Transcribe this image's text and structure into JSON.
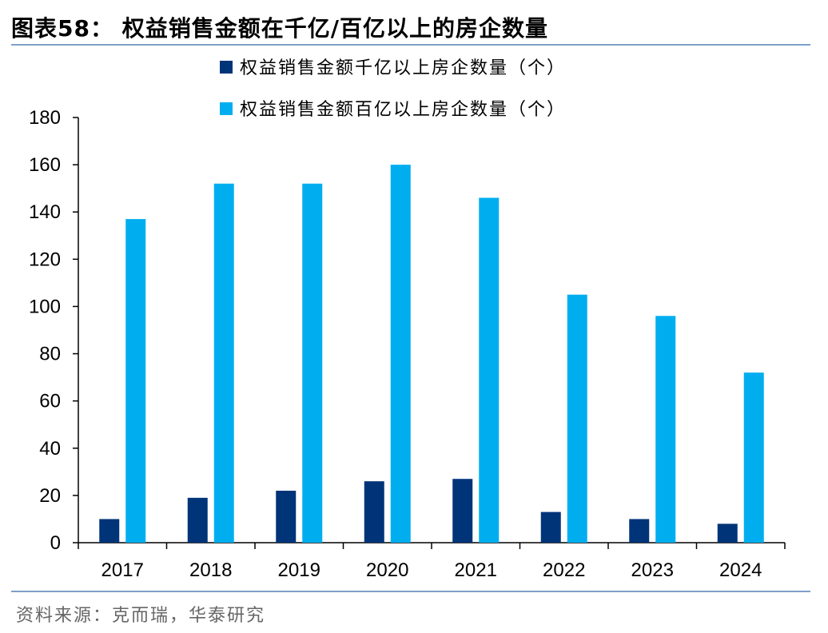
{
  "header": {
    "title": "图表58：  权益销售金额在千亿/百亿以上的房企数量"
  },
  "footer": {
    "source": "资料来源：克而瑞，华泰研究"
  },
  "colors": {
    "series1": "#003478",
    "series2": "#00aeef",
    "rule": "#7f9fc9"
  },
  "chart_data": {
    "type": "bar",
    "title": "",
    "xlabel": "",
    "ylabel": "",
    "categories": [
      "2017",
      "2018",
      "2019",
      "2020",
      "2021",
      "2022",
      "2023",
      "2024"
    ],
    "ylim": [
      0,
      180
    ],
    "yticks": [
      "0",
      "20",
      "40",
      "60",
      "80",
      "100",
      "120",
      "140",
      "160",
      "180"
    ],
    "grid": false,
    "legend_position": "top-center",
    "series": [
      {
        "name": "权益销售金额千亿以上房企数量（个）",
        "values": [
          10,
          19,
          22,
          26,
          27,
          13,
          10,
          8
        ]
      },
      {
        "name": "权益销售金额百亿以上房企数量（个）",
        "values": [
          137,
          152,
          152,
          160,
          146,
          105,
          96,
          72
        ]
      }
    ]
  }
}
